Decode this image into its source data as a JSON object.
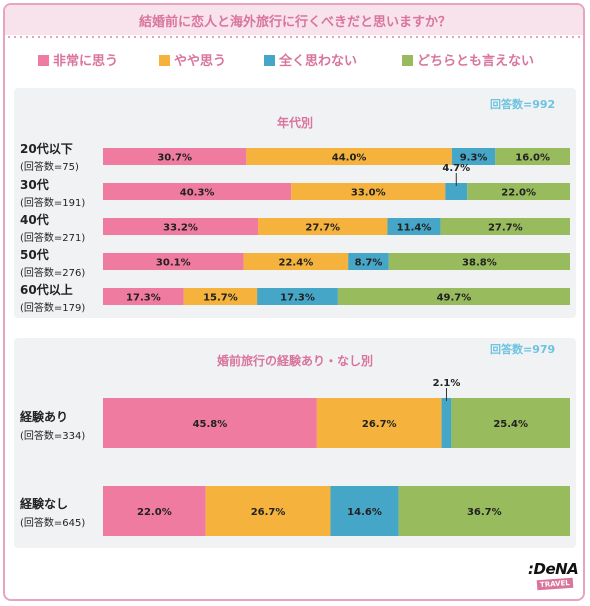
{
  "title": "結婚前に恋人と海外旅行に行くべきだと思いますか？",
  "colors": {
    "accent": "#d9759c",
    "n_label": "#6ec3e0"
  },
  "legend": [
    {
      "label": "非常に思う",
      "color": "#f07ba0"
    },
    {
      "label": "やや思う",
      "color": "#f5b33e"
    },
    {
      "label": "全く思わない",
      "color": "#45a6c8"
    },
    {
      "label": "どちらとも言えない",
      "color": "#98bb5e"
    }
  ],
  "chart_data": [
    {
      "type": "bar",
      "title": "年代別",
      "n_label": "回答数=992",
      "stacked": true,
      "orientation": "horizontal",
      "categories": [
        "20代以下",
        "30代",
        "40代",
        "50代",
        "60代以上"
      ],
      "category_counts": [
        "(回答数=75)",
        "(回答数=191)",
        "(回答数=271)",
        "(回答数=276)",
        "(回答数=179)"
      ],
      "series": [
        {
          "name": "非常に思う",
          "values": [
            30.7,
            40.3,
            33.2,
            30.1,
            17.3
          ]
        },
        {
          "name": "やや思う",
          "values": [
            44.0,
            33.0,
            27.7,
            22.4,
            15.7
          ]
        },
        {
          "name": "全く思わない",
          "values": [
            9.3,
            4.7,
            11.4,
            8.7,
            17.3
          ]
        },
        {
          "name": "どちらとも言えない",
          "values": [
            16.0,
            22.0,
            27.7,
            38.8,
            49.7
          ]
        }
      ],
      "xlim": [
        0,
        100
      ]
    },
    {
      "type": "bar",
      "title": "婚前旅行の経験あり・なし別",
      "n_label": "回答数=979",
      "stacked": true,
      "orientation": "horizontal",
      "categories": [
        "経験あり",
        "経験なし"
      ],
      "category_counts": [
        "(回答数=334)",
        "(回答数=645)"
      ],
      "series": [
        {
          "name": "非常に思う",
          "values": [
            45.8,
            22.0
          ]
        },
        {
          "name": "やや思う",
          "values": [
            26.7,
            26.7
          ]
        },
        {
          "name": "全く思わない",
          "values": [
            2.1,
            14.6
          ]
        },
        {
          "name": "どちらとも言えない",
          "values": [
            25.4,
            36.7
          ]
        }
      ],
      "xlim": [
        0,
        100
      ]
    }
  ],
  "logo": {
    "main": ":DeNA",
    "sub": "TRAVEL"
  }
}
